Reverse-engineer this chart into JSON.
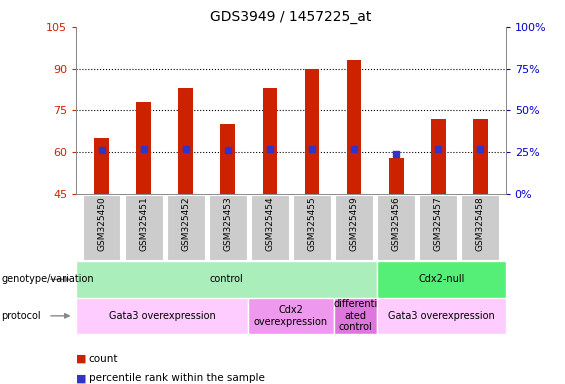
{
  "title": "GDS3949 / 1457225_at",
  "samples": [
    "GSM325450",
    "GSM325451",
    "GSM325452",
    "GSM325453",
    "GSM325454",
    "GSM325455",
    "GSM325459",
    "GSM325456",
    "GSM325457",
    "GSM325458"
  ],
  "counts": [
    65,
    78,
    83,
    70,
    83,
    90,
    93,
    58,
    72,
    72
  ],
  "percentile_ranks": [
    26,
    27,
    27,
    26,
    27,
    27,
    27,
    24,
    27,
    27
  ],
  "ylim_left": [
    45,
    105
  ],
  "ylim_right": [
    0,
    100
  ],
  "yticks_left": [
    45,
    60,
    75,
    90,
    105
  ],
  "yticks_right": [
    0,
    25,
    50,
    75,
    100
  ],
  "bar_color": "#cc2200",
  "dot_color": "#3333cc",
  "genotype_groups": [
    {
      "label": "control",
      "start": 0,
      "end": 7,
      "color": "#aaeebb"
    },
    {
      "label": "Cdx2-null",
      "start": 7,
      "end": 10,
      "color": "#55ee77"
    }
  ],
  "protocol_groups": [
    {
      "label": "Gata3 overexpression",
      "start": 0,
      "end": 4,
      "color": "#ffccff"
    },
    {
      "label": "Cdx2\noverexpression",
      "start": 4,
      "end": 6,
      "color": "#ee99ee"
    },
    {
      "label": "differenti\nated\ncontrol",
      "start": 6,
      "end": 7,
      "color": "#dd77dd"
    },
    {
      "label": "Gata3 overexpression",
      "start": 7,
      "end": 10,
      "color": "#ffccff"
    }
  ],
  "left_label_color": "#cc2200",
  "right_label_color": "#0000cc",
  "tick_bg_color": "#cccccc"
}
